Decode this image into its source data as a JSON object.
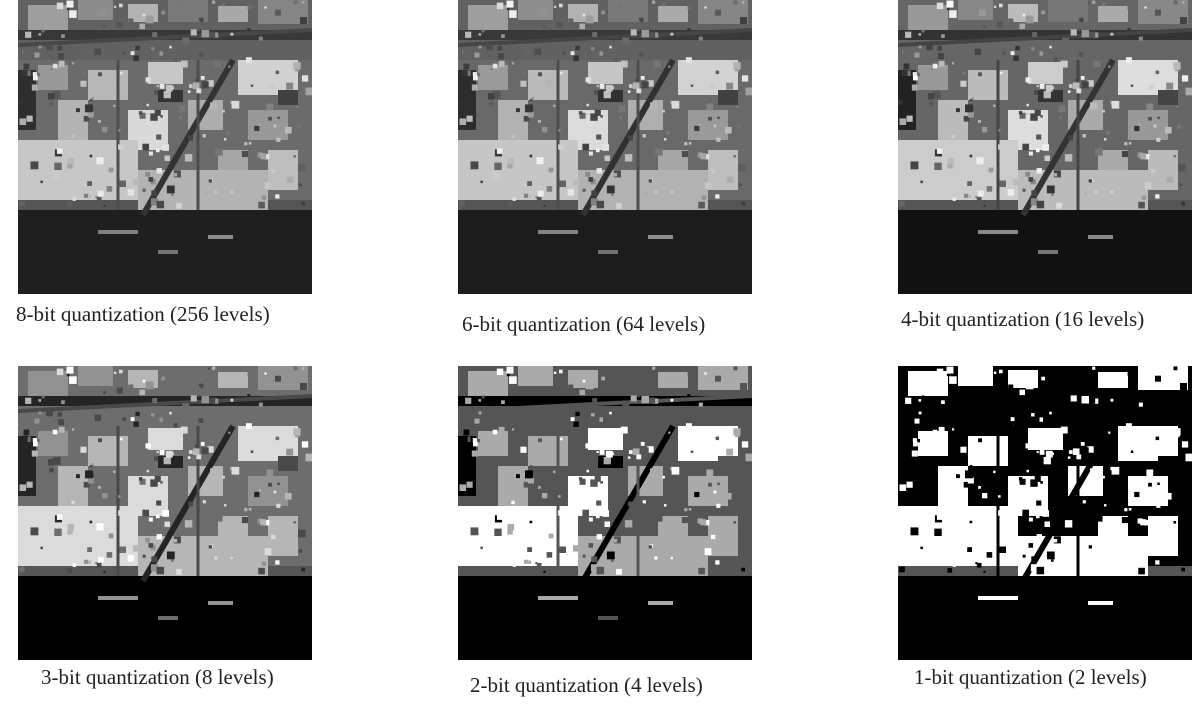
{
  "figure": {
    "panels": [
      {
        "id": "p8",
        "caption": "8-bit quantization (256 levels)",
        "bits": 8,
        "levels": 256
      },
      {
        "id": "p6",
        "caption": "6-bit quantization (64 levels)",
        "bits": 6,
        "levels": 64
      },
      {
        "id": "p4",
        "caption": "4-bit quantization (16 levels)",
        "bits": 4,
        "levels": 16
      },
      {
        "id": "p3",
        "caption": "3-bit quantization (8 levels)",
        "bits": 3,
        "levels": 8
      },
      {
        "id": "p2",
        "caption": "2-bit quantization (4 levels)",
        "bits": 2,
        "levels": 4
      },
      {
        "id": "p1",
        "caption": "1-bit quantization (2 levels)",
        "bits": 1,
        "levels": 2
      }
    ]
  }
}
